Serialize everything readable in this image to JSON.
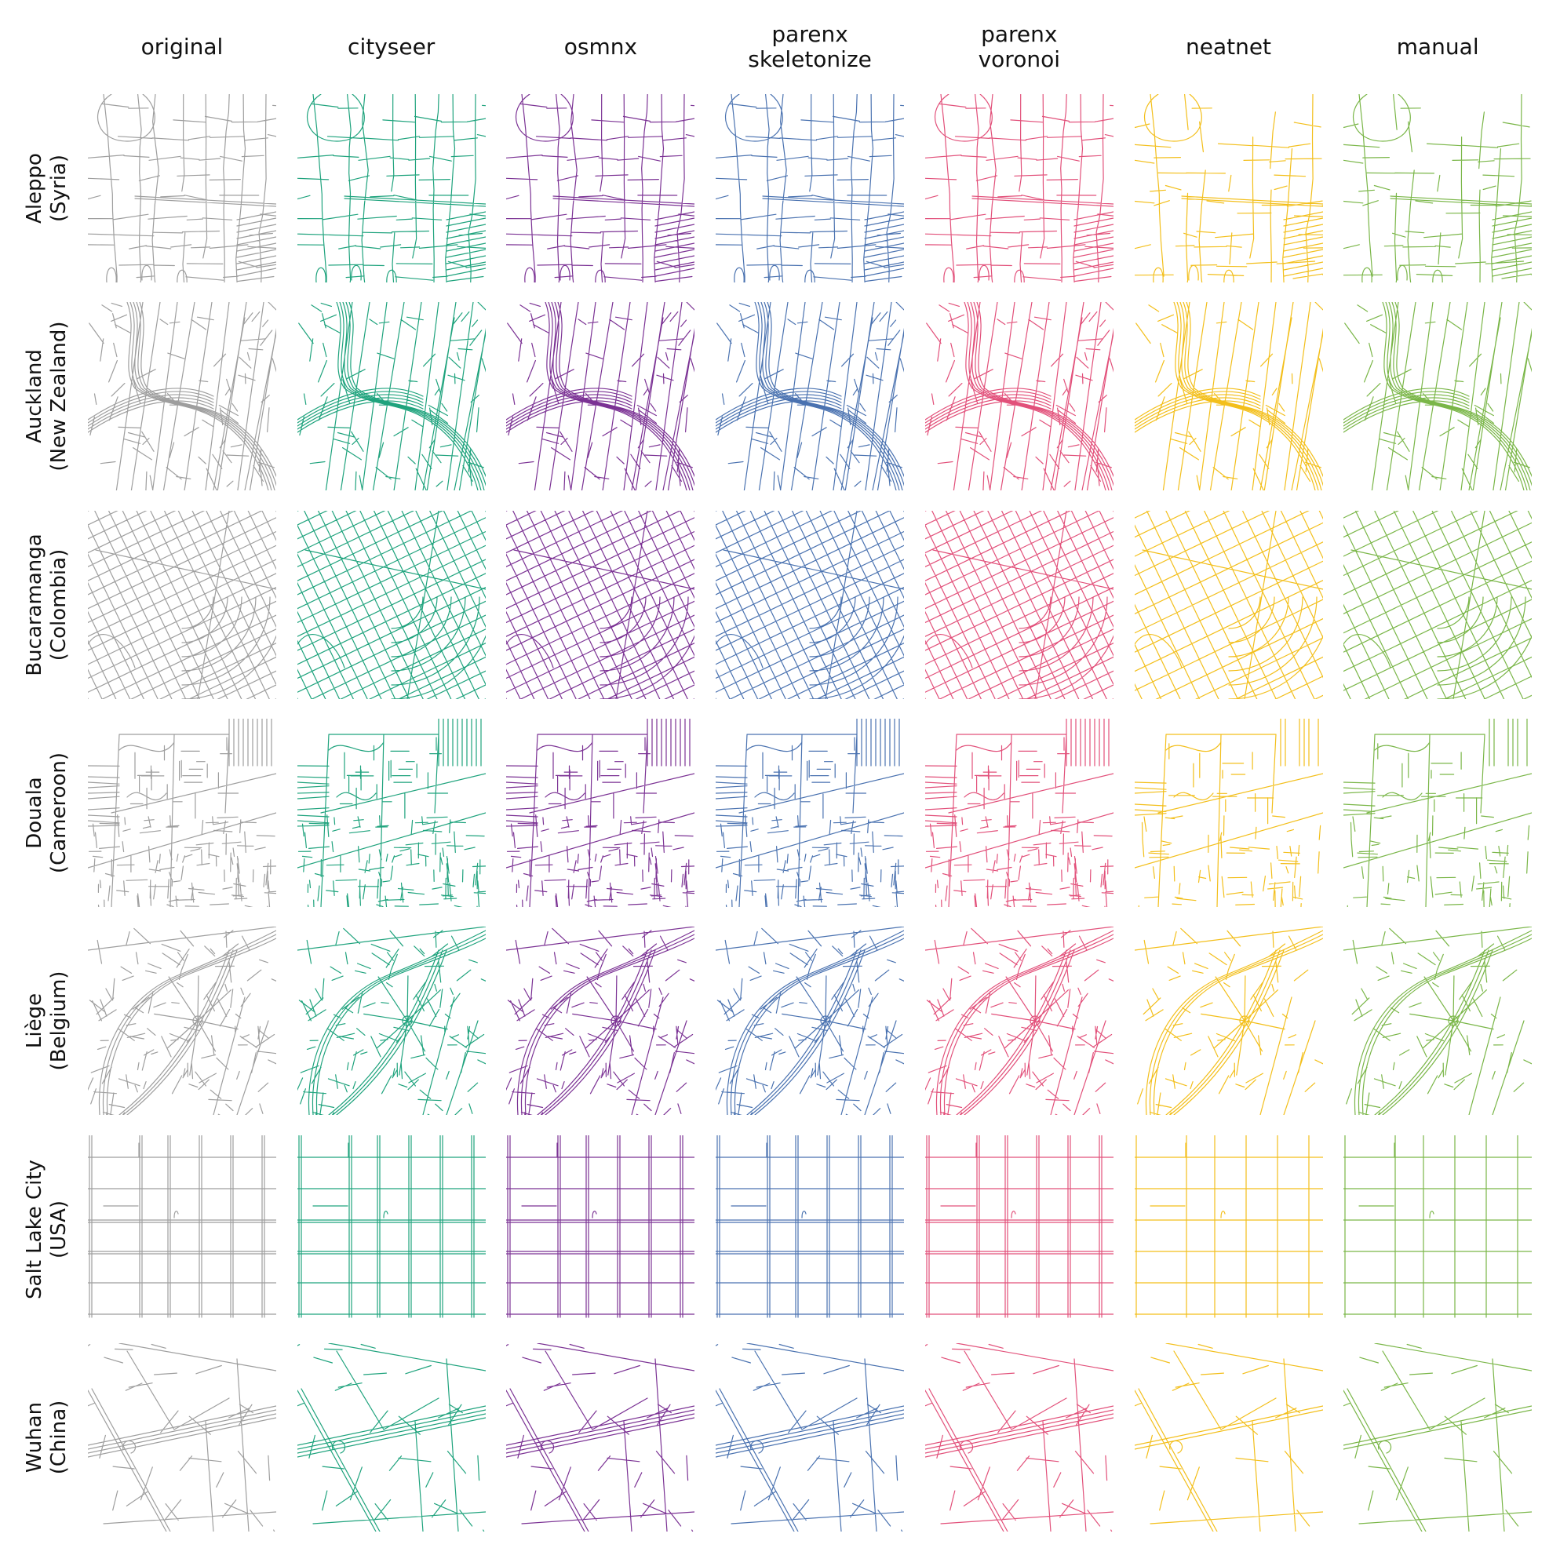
{
  "columns": [
    {
      "label": "original",
      "color": "#9e9e9e"
    },
    {
      "label": "cityseer",
      "color": "#1fa37d"
    },
    {
      "label": "osmnx",
      "color": "#7b3294"
    },
    {
      "label": "parenx\nskeletonize",
      "color": "#4a72b0"
    },
    {
      "label": "parenx\nvoronoi",
      "color": "#e2507a"
    },
    {
      "label": "neatnet",
      "color": "#f3bf1b"
    },
    {
      "label": "manual",
      "color": "#7ab648"
    }
  ],
  "rows": [
    {
      "label": "Aleppo\n(Syria)",
      "pattern": "organic-dense"
    },
    {
      "label": "Auckland\n(New Zealand)",
      "pattern": "motorway-curves"
    },
    {
      "label": "Bucaramanga\n(Colombia)",
      "pattern": "rotated-grid"
    },
    {
      "label": "Douala\n(Cameroon)",
      "pattern": "mixed-grid"
    },
    {
      "label": "Liège\n(Belgium)",
      "pattern": "curving-ring"
    },
    {
      "label": "Salt Lake City\n(USA)",
      "pattern": "orthogonal-grid"
    },
    {
      "label": "Wuhan\n(China)",
      "pattern": "sparse-diagonal"
    }
  ]
}
